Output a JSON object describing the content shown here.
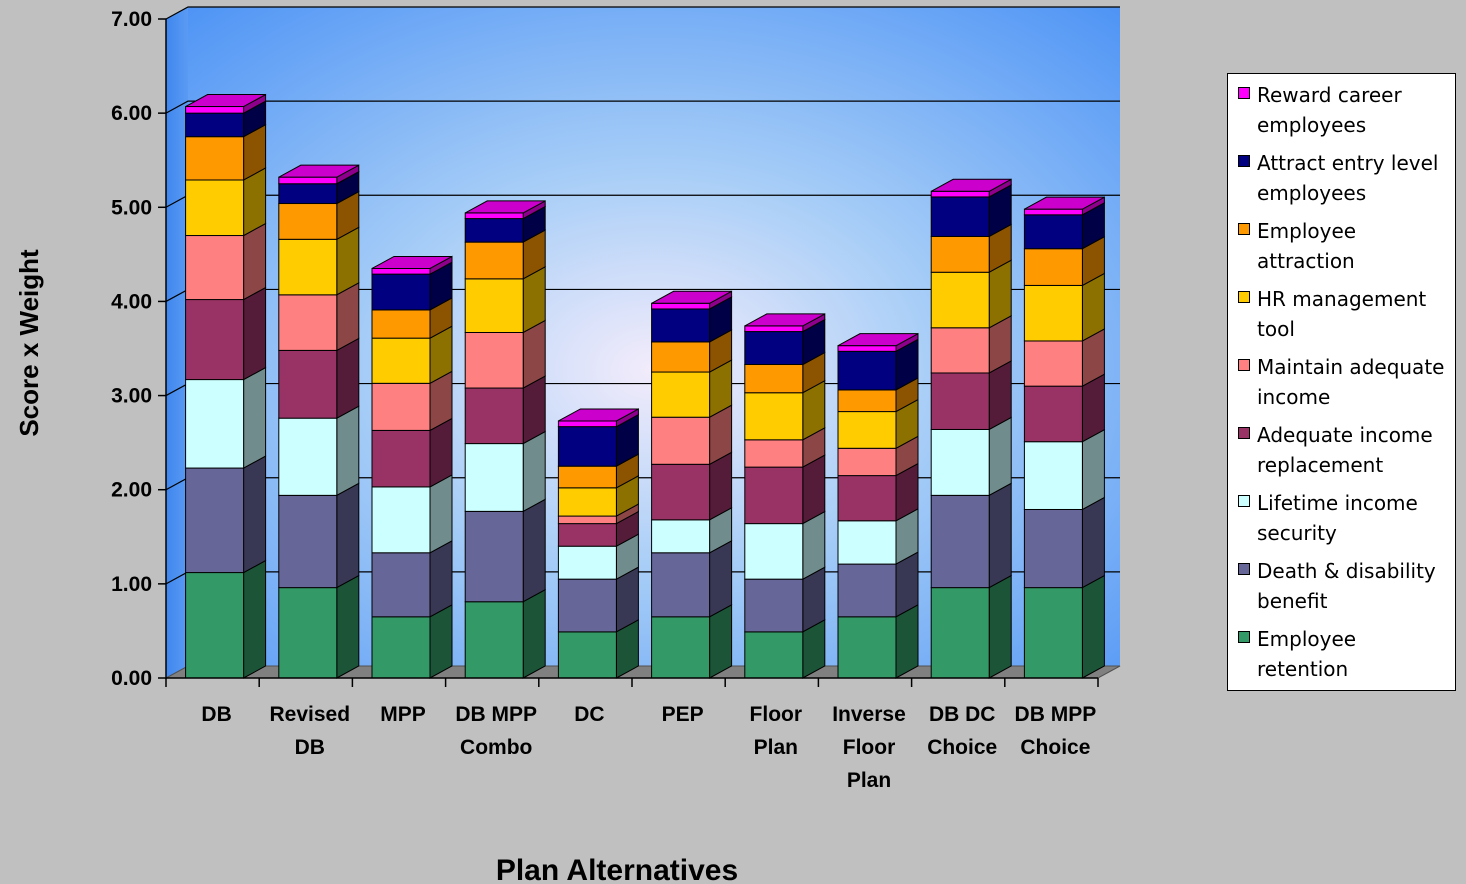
{
  "chart_data": {
    "type": "bar",
    "stacked": true,
    "three_d": true,
    "xlabel": "Plan Alternatives",
    "ylabel": "Score x Weight",
    "ylim": [
      0,
      7
    ],
    "yticks": [
      "0.00",
      "1.00",
      "2.00",
      "3.00",
      "4.00",
      "5.00",
      "6.00",
      "7.00"
    ],
    "grid": true,
    "legend_position": "right",
    "categories": [
      "DB",
      "Revised DB",
      "MPP",
      "DB MPP Combo",
      "DC",
      "PEP",
      "Floor Plan",
      "Inverse Floor Plan",
      "DB DC Choice",
      "DB MPP Choice"
    ],
    "category_lines": [
      [
        "DB"
      ],
      [
        "Revised",
        "DB"
      ],
      [
        "MPP"
      ],
      [
        "DB MPP",
        "Combo"
      ],
      [
        "DC"
      ],
      [
        "PEP"
      ],
      [
        "Floor",
        "Plan"
      ],
      [
        "Inverse",
        "Floor",
        "Plan"
      ],
      [
        "DB DC",
        "Choice"
      ],
      [
        "DB MPP",
        "Choice"
      ]
    ],
    "series": [
      {
        "name": "Employee retention",
        "color": "#339966",
        "values": [
          1.12,
          0.96,
          0.65,
          0.81,
          0.49,
          0.65,
          0.49,
          0.65,
          0.96,
          0.96
        ]
      },
      {
        "name": "Death & disability benefit",
        "color": "#666699",
        "values": [
          1.11,
          0.98,
          0.68,
          0.96,
          0.56,
          0.68,
          0.56,
          0.56,
          0.98,
          0.83
        ]
      },
      {
        "name": "Lifetime income security",
        "color": "#ccffff",
        "values": [
          0.94,
          0.82,
          0.7,
          0.72,
          0.35,
          0.35,
          0.59,
          0.46,
          0.7,
          0.72
        ]
      },
      {
        "name": "Adequate income replacement",
        "color": "#993366",
        "values": [
          0.85,
          0.72,
          0.6,
          0.59,
          0.24,
          0.59,
          0.6,
          0.48,
          0.6,
          0.59
        ]
      },
      {
        "name": "Maintain adequate income",
        "color": "#ff8080",
        "values": [
          0.68,
          0.59,
          0.5,
          0.59,
          0.08,
          0.5,
          0.29,
          0.29,
          0.48,
          0.48
        ]
      },
      {
        "name": "HR management tool",
        "color": "#ffcc00",
        "values": [
          0.59,
          0.59,
          0.48,
          0.57,
          0.3,
          0.48,
          0.5,
          0.39,
          0.59,
          0.59
        ]
      },
      {
        "name": "Employee attraction",
        "color": "#ff9900",
        "values": [
          0.46,
          0.38,
          0.3,
          0.39,
          0.23,
          0.32,
          0.3,
          0.23,
          0.38,
          0.39
        ]
      },
      {
        "name": "Attract entry level employees",
        "color": "#000080",
        "values": [
          0.25,
          0.21,
          0.38,
          0.25,
          0.42,
          0.35,
          0.35,
          0.41,
          0.42,
          0.36
        ]
      },
      {
        "name": "Reward career employees",
        "color": "#ff00ff",
        "values": [
          0.07,
          0.07,
          0.06,
          0.06,
          0.06,
          0.06,
          0.06,
          0.06,
          0.06,
          0.06
        ]
      }
    ]
  }
}
